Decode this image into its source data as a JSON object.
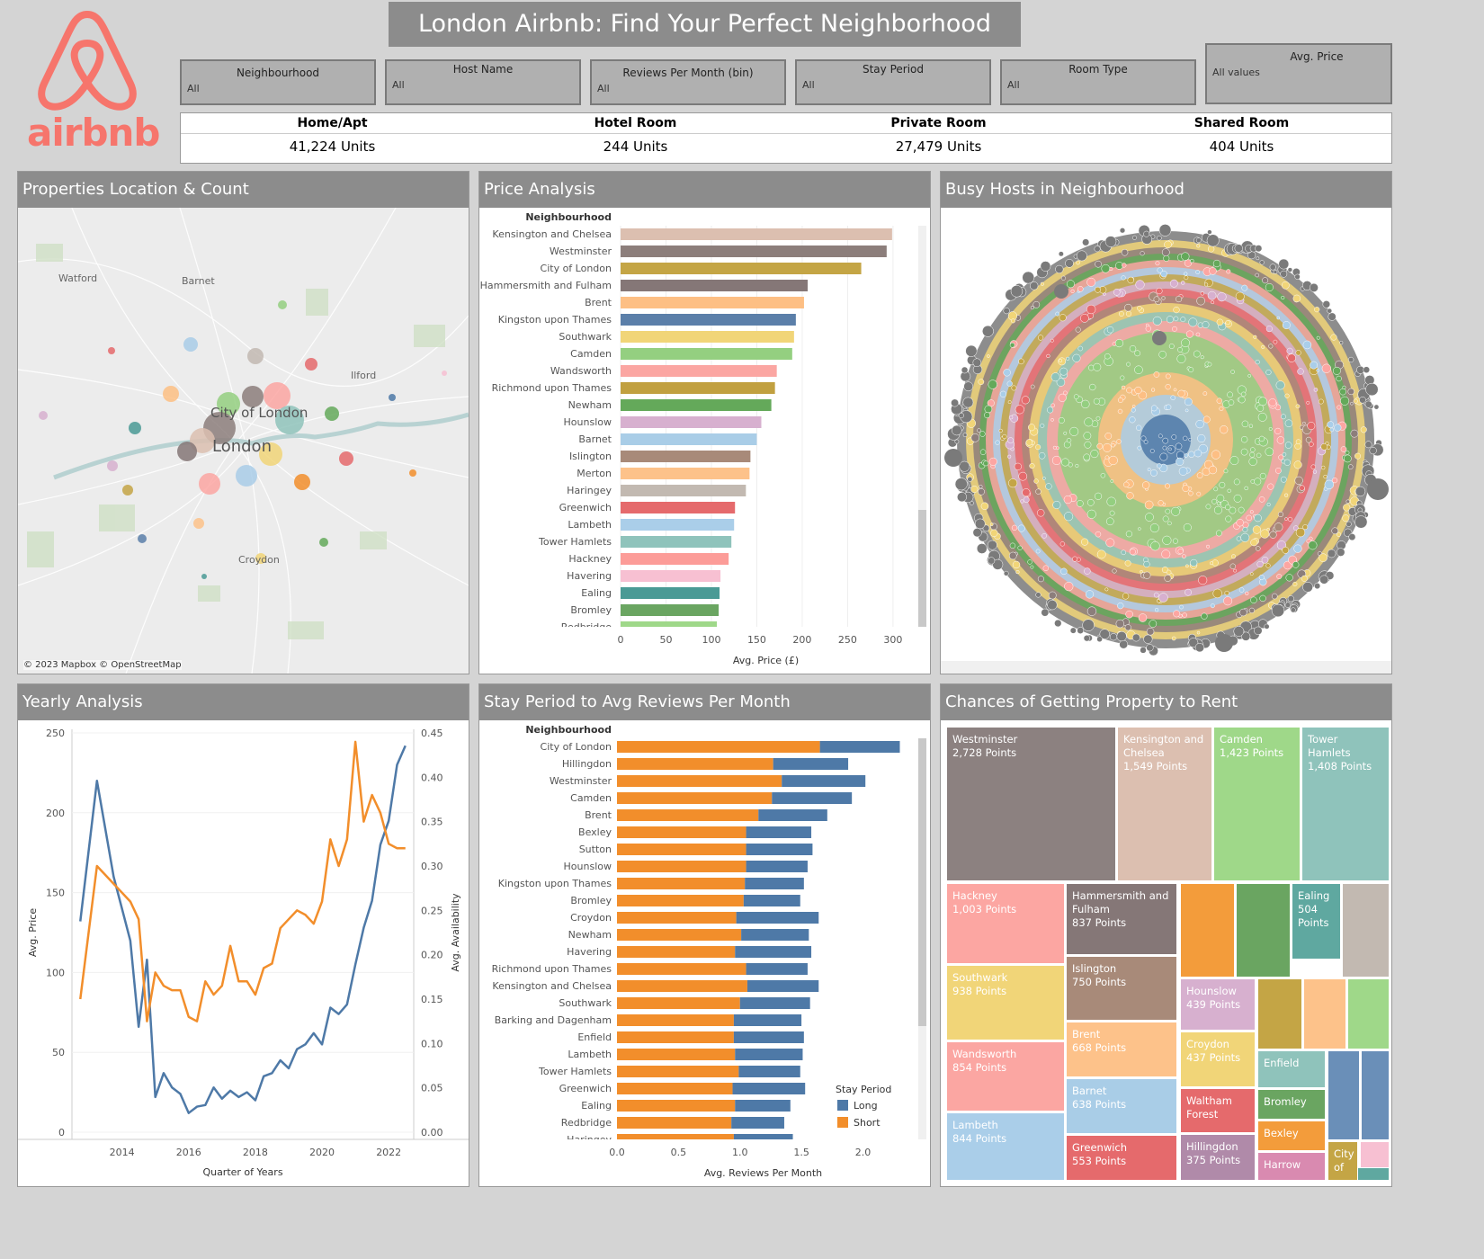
{
  "header": {
    "title": "London Airbnb: Find Your Perfect Neighborhood",
    "logo_text": "airbnb"
  },
  "filters": [
    {
      "label": "Neighbourhood",
      "value": "All"
    },
    {
      "label": "Host Name",
      "value": "All"
    },
    {
      "label": "Reviews Per Month (bin)",
      "value": "All"
    },
    {
      "label": "Stay Period",
      "value": "All"
    },
    {
      "label": "Room Type",
      "value": "All"
    },
    {
      "label": "Avg. Price",
      "value": "All values"
    }
  ],
  "kpis": [
    {
      "label": "Home/Apt",
      "value": "41,224 Units"
    },
    {
      "label": "Hotel Room",
      "value": "244 Units"
    },
    {
      "label": "Private Room",
      "value": "27,479 Units"
    },
    {
      "label": "Shared Room",
      "value": "404 Units"
    }
  ],
  "panels": {
    "map": "Properties Location & Count",
    "price": "Price Analysis",
    "hosts": "Busy Hosts in Neighbourhood",
    "yearly": "Yearly Analysis",
    "stay": "Stay Period to Avg Reviews Per Month",
    "chances": "Chances of Getting Property to Rent"
  },
  "map": {
    "places": [
      "Watford",
      "Barnet",
      "Ilford",
      "City of London",
      "London",
      "Croydon"
    ],
    "credit": "© 2023 Mapbox © OpenStreetMap"
  },
  "chart_data": [
    {
      "type": "bar",
      "orientation": "horizontal",
      "header": "Neighbourhood",
      "xlabel": "Avg. Price (£)",
      "xlim": [
        0,
        310
      ],
      "ticks": [
        0,
        50,
        100,
        150,
        200,
        250,
        300
      ],
      "categories": [
        "Kensington and Chelsea",
        "Westminster",
        "City of London",
        "Hammersmith and Fulham",
        "Brent",
        "Kingston upon Thames",
        "Southwark",
        "Camden",
        "Wandsworth",
        "Richmond upon Thames",
        "Newham",
        "Hounslow",
        "Barnet",
        "Islington",
        "Merton",
        "Haringey",
        "Greenwich",
        "Lambeth",
        "Tower Hamlets",
        "Hackney",
        "Havering",
        "Ealing",
        "Bromley",
        "Redbridge"
      ],
      "values": [
        299,
        293,
        265,
        206,
        202,
        193,
        191,
        189,
        172,
        170,
        166,
        155,
        150,
        143,
        142,
        138,
        126,
        125,
        122,
        119,
        110,
        109,
        108,
        106
      ],
      "colors": [
        "#dcbfb0",
        "#8c7e7b",
        "#c4a545",
        "#857777",
        "#fdbf84",
        "#5b7fa9",
        "#f1d578",
        "#94cf80",
        "#fba6a2",
        "#c1a040",
        "#64a95a",
        "#d7b0cf",
        "#a9cde7",
        "#a88a79",
        "#fdc28a",
        "#c2b9b1",
        "#e56a6c",
        "#aacee9",
        "#8fc3bb",
        "#fc9c98",
        "#f7c0d2",
        "#4a9a95",
        "#6aa561",
        "#9fd889"
      ]
    },
    {
      "type": "line",
      "xlabel": "Quarter of Years",
      "ylabel_left": "Avg. Price",
      "ylabel_right": "Avg. Availability",
      "ylim_left": [
        0,
        250
      ],
      "ylim_right": [
        0,
        0.45
      ],
      "x_ticks": [
        "2014",
        "2016",
        "2018",
        "2020",
        "2022"
      ],
      "y_left_ticks": [
        0,
        50,
        100,
        150,
        200,
        250
      ],
      "y_right_ticks": [
        "0.00",
        "0.05",
        "0.10",
        "0.15",
        "0.20",
        "0.25",
        "0.30",
        "0.35",
        "0.40",
        "0.45"
      ],
      "x": [
        2012.75,
        2013.25,
        2013.75,
        2014.25,
        2014.5,
        2014.75,
        2015.0,
        2015.25,
        2015.5,
        2015.75,
        2016.0,
        2016.25,
        2016.5,
        2016.75,
        2017.0,
        2017.25,
        2017.5,
        2017.75,
        2018.0,
        2018.25,
        2018.5,
        2018.75,
        2019.0,
        2019.25,
        2019.5,
        2019.75,
        2020.0,
        2020.25,
        2020.5,
        2020.75,
        2021.0,
        2021.25,
        2021.5,
        2021.75,
        2022.0,
        2022.25,
        2022.5
      ],
      "series": [
        {
          "name": "Avg. Price",
          "axis": "left",
          "color": "#4e79a7",
          "values": [
            132,
            220,
            160,
            120,
            66,
            108,
            22,
            37,
            28,
            24,
            12,
            16,
            17,
            28,
            21,
            26,
            22,
            25,
            20,
            35,
            37,
            45,
            40,
            52,
            55,
            62,
            55,
            78,
            74,
            80,
            105,
            128,
            145,
            180,
            195,
            230,
            242
          ]
        },
        {
          "name": "Avg. Availability",
          "axis": "right",
          "color": "#f28e2b",
          "values": [
            0.15,
            0.3,
            0.28,
            0.26,
            0.24,
            0.125,
            0.18,
            0.165,
            0.16,
            0.16,
            0.13,
            0.125,
            0.17,
            0.155,
            0.165,
            0.21,
            0.17,
            0.17,
            0.155,
            0.185,
            0.19,
            0.23,
            0.24,
            0.25,
            0.245,
            0.235,
            0.26,
            0.33,
            0.3,
            0.33,
            0.44,
            0.35,
            0.38,
            0.36,
            0.325,
            0.32,
            0.32
          ]
        }
      ]
    },
    {
      "type": "bar",
      "orientation": "horizontal",
      "stacked": true,
      "header": "Neighbourhood",
      "xlabel": "Avg. Reviews Per Month",
      "xlim": [
        0,
        2.45
      ],
      "ticks": [
        "0.0",
        "0.5",
        "1.0",
        "1.5",
        "2.0"
      ],
      "legend_title": "Stay Period",
      "legend_position": "bottom-right",
      "categories": [
        "City of London",
        "Hillingdon",
        "Westminster",
        "Camden",
        "Brent",
        "Bexley",
        "Sutton",
        "Hounslow",
        "Kingston upon Thames",
        "Bromley",
        "Croydon",
        "Newham",
        "Havering",
        "Richmond upon Thames",
        "Kensington and Chelsea",
        "Southwark",
        "Barking and Dagenham",
        "Enfield",
        "Lambeth",
        "Tower Hamlets",
        "Greenwich",
        "Ealing",
        "Redbridge",
        "Haringey"
      ],
      "series": [
        {
          "name": "Short",
          "color": "#f28e2b",
          "values": [
            1.65,
            1.27,
            1.34,
            1.26,
            1.15,
            1.05,
            1.05,
            1.05,
            1.04,
            1.03,
            0.97,
            1.01,
            0.96,
            1.05,
            1.06,
            1.0,
            0.95,
            0.95,
            0.96,
            0.99,
            0.94,
            0.96,
            0.93,
            0.95
          ]
        },
        {
          "name": "Long",
          "color": "#4e79a7",
          "values": [
            0.65,
            0.61,
            0.68,
            0.65,
            0.56,
            0.53,
            0.54,
            0.5,
            0.48,
            0.46,
            0.67,
            0.55,
            0.62,
            0.5,
            0.58,
            0.57,
            0.55,
            0.57,
            0.55,
            0.5,
            0.59,
            0.45,
            0.43,
            0.48
          ]
        }
      ]
    },
    {
      "type": "treemap",
      "items": [
        {
          "label": "Westminster",
          "value": "2,728 Points",
          "color": "#8c8180"
        },
        {
          "label": "Kensington and Chelsea",
          "value": "1,549 Points",
          "color": "#dcbfb0"
        },
        {
          "label": "Camden",
          "value": "1,423 Points",
          "color": "#9fd889"
        },
        {
          "label": "Tower Hamlets",
          "value": "1,408 Points",
          "color": "#8fc3bb"
        },
        {
          "label": "Hackney",
          "value": "1,003 Points",
          "color": "#fca6a2"
        },
        {
          "label": "Hammersmith and Fulham",
          "value": "837 Points",
          "color": "#857777"
        },
        {
          "label": "Ealing",
          "value": "504 Points",
          "color": "#5fa8a0"
        },
        {
          "label": "Southwark",
          "value": "938 Points",
          "color": "#f1d578"
        },
        {
          "label": "Islington",
          "value": "750 Points",
          "color": "#a88a79"
        },
        {
          "label": "Hounslow",
          "value": "439 Points",
          "color": "#d7b0cf"
        },
        {
          "label": "Wandsworth",
          "value": "854 Points",
          "color": "#fba6a2"
        },
        {
          "label": "Brent",
          "value": "668 Points",
          "color": "#fdc28a"
        },
        {
          "label": "Croydon",
          "value": "437 Points",
          "color": "#f1d578"
        },
        {
          "label": "Enfield",
          "value": "",
          "color": "#8fc3bb"
        },
        {
          "label": "Bromley",
          "value": "",
          "color": "#6aa561"
        },
        {
          "label": "Lambeth",
          "value": "844 Points",
          "color": "#aacee9"
        },
        {
          "label": "Barnet",
          "value": "638 Points",
          "color": "#a9cde7"
        },
        {
          "label": "Waltham Forest",
          "value": "",
          "color": "#e56a6c"
        },
        {
          "label": "Bexley",
          "value": "",
          "color": "#f39c3b"
        },
        {
          "label": "City of",
          "value": "",
          "color": "#c4a545"
        },
        {
          "label": "Greenwich",
          "value": "553 Points",
          "color": "#e56a6c"
        },
        {
          "label": "Hillingdon",
          "value": "375 Points",
          "color": "#b08aa9"
        },
        {
          "label": "Harrow",
          "value": "",
          "color": "#d98ab0"
        }
      ]
    }
  ]
}
